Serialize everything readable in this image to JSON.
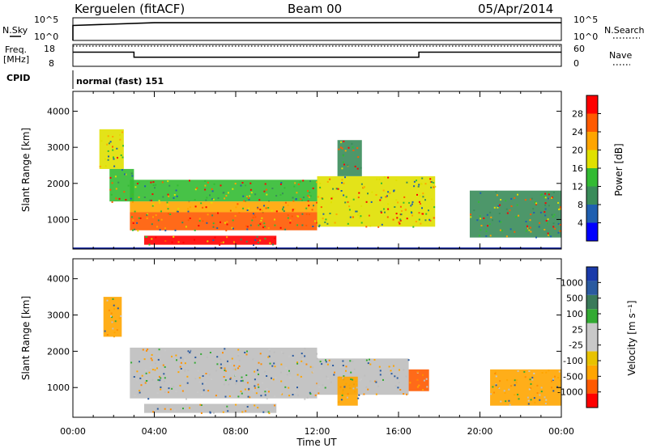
{
  "header": {
    "radar": "Kerguelen (fitACF)",
    "beam": "Beam 00",
    "date": "05/Apr/2014"
  },
  "panel_labels": {
    "nsky": "N.Sky",
    "nsearch": "N.Search",
    "freq_line1": "Freq.",
    "freq_line2": "[MHz]",
    "nave": "Nave",
    "cpid": "CPID",
    "cpid_value": "normal (fast) 151"
  },
  "strip_ticks": {
    "noise_left": [
      "10^5",
      "10^0"
    ],
    "noise_right": [
      "10^5",
      "10^0"
    ],
    "freq_left": [
      "18",
      "8"
    ],
    "nave_right": [
      "60",
      "0"
    ]
  },
  "colors": {
    "power_scale": [
      "#0000ff",
      "#1f5fb0",
      "#3a8c5a",
      "#33bb33",
      "#e0e000",
      "#ffa500",
      "#ff5a00",
      "#ff0000"
    ],
    "velocity_scale": [
      "#ff0000",
      "#ff5a00",
      "#ffa500",
      "#e8c200",
      "#c8c8c8",
      "#c8c8c8",
      "#33aa33",
      "#3a7a5a",
      "#2a5aa0",
      "#1a3aaa"
    ],
    "ground_scatter": "#bebebe"
  },
  "chart_data": [
    {
      "type": "line",
      "title": "N.Sky / N.Search",
      "x": [
        "00:00",
        "04:00",
        "08:00",
        "12:00",
        "16:00",
        "20:00",
        "00:00"
      ],
      "y_scale": "log",
      "ylim": [
        1,
        100000
      ],
      "series": [
        {
          "name": "N.Sky",
          "values": [
            2000,
            8000,
            8000,
            8000,
            9000,
            8000,
            8000
          ]
        }
      ]
    },
    {
      "type": "line",
      "title": "Freq. / Nave",
      "xlim": [
        "00:00",
        "24:00"
      ],
      "series": [
        {
          "name": "Freq.",
          "x": [
            "00:00",
            "03:00",
            "03:00",
            "17:00",
            "17:00",
            "24:00"
          ],
          "values": [
            14.5,
            14.5,
            12.2,
            12.2,
            14.5,
            14.5
          ]
        },
        {
          "name": "Nave",
          "values": [
            60,
            60,
            60,
            60,
            60,
            60,
            60
          ]
        }
      ],
      "ylim_left": [
        8,
        18
      ],
      "ylim_right": [
        0,
        60
      ]
    },
    {
      "type": "heatmap",
      "title": "Power",
      "xlabel": "Time UT",
      "ylabel": "Slant Range [km]",
      "xticks": [
        "00:00",
        "04:00",
        "08:00",
        "12:00",
        "16:00",
        "20:00",
        "00:00"
      ],
      "xlim_hours": [
        0,
        24
      ],
      "yticks": [
        "1000",
        "2000",
        "3000",
        "4000"
      ],
      "ylim": [
        180,
        4550
      ],
      "colorbar": {
        "label": "Power [dB]",
        "ticks": [
          "4",
          "8",
          "12",
          "16",
          "20",
          "24",
          "28"
        ],
        "range": [
          0,
          32
        ]
      },
      "regions": [
        {
          "t0": 1.3,
          "t1": 2.5,
          "r0": 2400,
          "r1": 3500,
          "value": 18
        },
        {
          "t0": 1.8,
          "t1": 3.0,
          "r0": 1500,
          "r1": 2400,
          "value": 14
        },
        {
          "t0": 2.8,
          "t1": 12.0,
          "r0": 1500,
          "r1": 2100,
          "value": 13
        },
        {
          "t0": 2.8,
          "t1": 12.0,
          "r0": 1200,
          "r1": 1500,
          "value": 20
        },
        {
          "t0": 2.8,
          "t1": 12.0,
          "r0": 700,
          "r1": 1200,
          "value": 27
        },
        {
          "t0": 3.5,
          "t1": 10.0,
          "r0": 300,
          "r1": 550,
          "value": 28
        },
        {
          "t0": 12.0,
          "t1": 17.8,
          "r0": 800,
          "r1": 2200,
          "value": 16
        },
        {
          "t0": 13.0,
          "t1": 14.2,
          "r0": 2200,
          "r1": 3200,
          "value": 8
        },
        {
          "t0": 19.5,
          "t1": 24.0,
          "r0": 500,
          "r1": 1800,
          "value": 8
        }
      ]
    },
    {
      "type": "heatmap",
      "title": "Velocity",
      "xlabel": "Time UT",
      "ylabel": "Slant Range [km]",
      "xticks": [
        "00:00",
        "04:00",
        "08:00",
        "12:00",
        "16:00",
        "20:00",
        "00:00"
      ],
      "xlim_hours": [
        0,
        24
      ],
      "yticks": [
        "1000",
        "2000",
        "3000",
        "4000"
      ],
      "ylim": [
        180,
        4550
      ],
      "colorbar": {
        "label": "Velocity [m s⁻¹]",
        "ticks": [
          "-1000",
          "-500",
          "-100",
          "-25",
          "25",
          "100",
          "500",
          "1000"
        ]
      },
      "regions": [
        {
          "t0": 1.5,
          "t1": 2.4,
          "r0": 2400,
          "r1": 3500,
          "value": -300
        },
        {
          "t0": 2.8,
          "t1": 12.0,
          "r0": 700,
          "r1": 2100,
          "value": 0
        },
        {
          "t0": 3.5,
          "t1": 10.0,
          "r0": 300,
          "r1": 550,
          "value": 0
        },
        {
          "t0": 12.0,
          "t1": 16.5,
          "r0": 800,
          "r1": 1800,
          "value": 0
        },
        {
          "t0": 13.0,
          "t1": 14.0,
          "r0": 500,
          "r1": 1300,
          "value": -400
        },
        {
          "t0": 16.5,
          "t1": 17.5,
          "r0": 900,
          "r1": 1500,
          "value": -600
        },
        {
          "t0": 20.5,
          "t1": 24.0,
          "r0": 500,
          "r1": 1500,
          "value": -200
        }
      ]
    }
  ],
  "axes_text": {
    "ylabel_power": "Slant Range [km]",
    "ylabel_velocity": "Slant Range [km]",
    "xlabel": "Time UT",
    "cb_power_label": "Power [dB]",
    "cb_vel_label": "Velocity [m s⁻¹]"
  }
}
